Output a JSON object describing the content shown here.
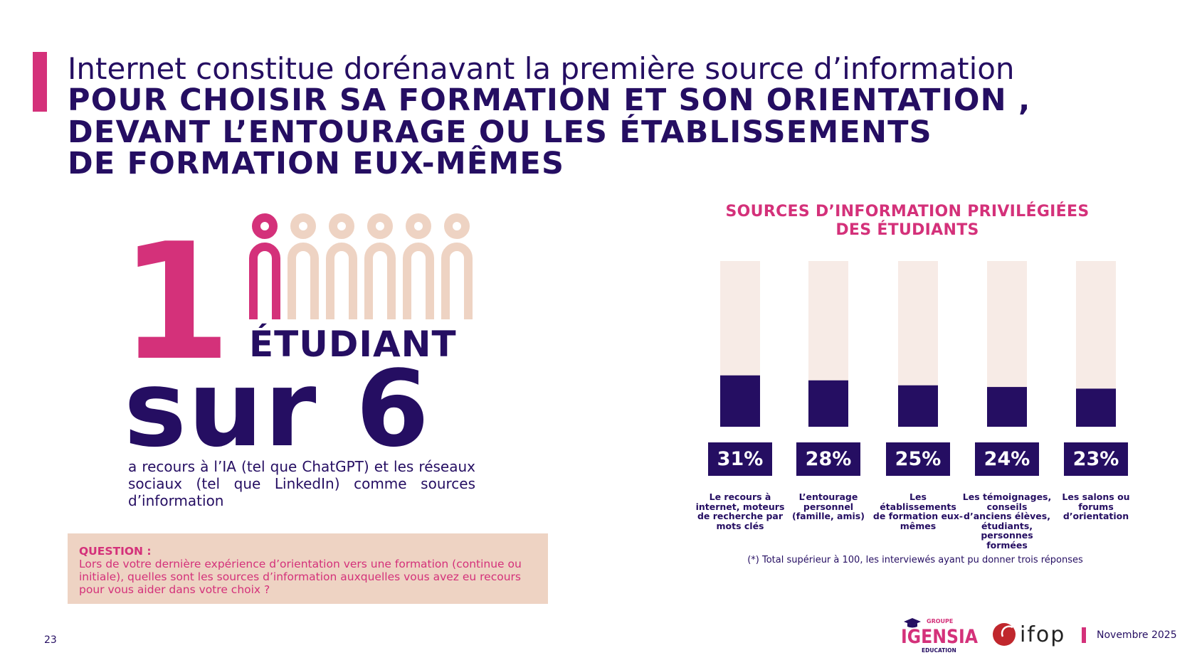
{
  "header": {
    "line1": "Internet constitue dorénavant la première source d’information",
    "line2": "POUR CHOISIR SA FORMATION ET SON ORIENTATION ,",
    "line3": "DEVANT L’ENTOURAGE OU LES ÉTABLISSEMENTS",
    "line4": "DE FORMATION EUX-MÊMES"
  },
  "stat": {
    "number": "1",
    "unit": "ÉTUDIANT",
    "ratio": "sur 6",
    "people_total": 6,
    "people_highlighted": 1,
    "description": "a recours à l’IA (tel que ChatGPT) et les réseaux sociaux (tel que LinkedIn) comme sources d’information"
  },
  "question": {
    "label": "QUESTION :",
    "text": "Lors de votre dernière expérience d’orientation vers une formation (continue ou initiale), quelles sont les sources d’information auxquelles vous avez eu recours pour vous aider dans votre choix ?"
  },
  "chart_data": {
    "type": "bar",
    "title_line1": "SOURCES D’INFORMATION PRIVILÉGIÉES",
    "title_line2": "DES ÉTUDIANTS",
    "categories": [
      "Le recours à internet, moteurs de recherche par mots clés",
      "L’entourage personnel (famille, amis)",
      "Les établissements de formation eux-mêmes",
      "Les témoignages, conseils d’anciens élèves, étudiants, personnes formées",
      "Les salons ou forums d’orientation"
    ],
    "values": [
      31,
      28,
      25,
      24,
      23
    ],
    "data_labels": [
      "31%",
      "28%",
      "25%",
      "24%",
      "23%"
    ],
    "ylim": [
      0,
      100
    ],
    "grid": false,
    "footnote": "(*) Total supérieur à 100, les interviewés ayant pu donner trois réponses"
  },
  "footer": {
    "page_number": "23",
    "date": "Novembre 2025",
    "logo_igensia": "GROUPE IGENSIA EDUCATION",
    "logo_ifop": "ifop"
  },
  "colors": {
    "navy": "#250e62",
    "pink": "#d4317a",
    "track": "#f7ebe6",
    "peach": "#eed3c3",
    "ifop_red": "#c0272d"
  }
}
